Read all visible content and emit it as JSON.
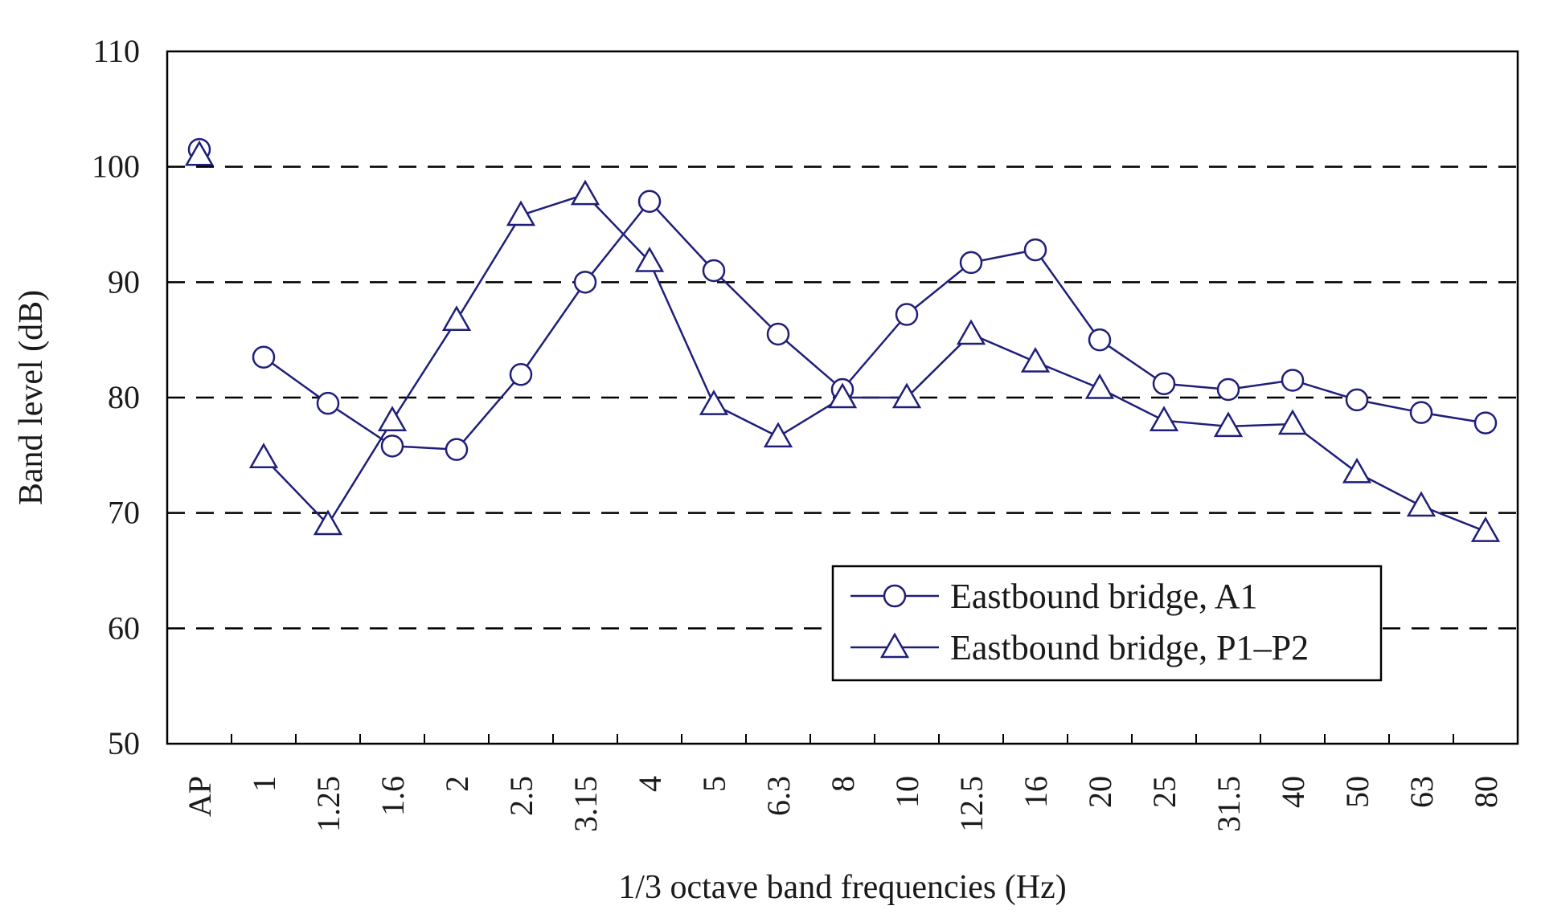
{
  "chart_data": {
    "type": "line",
    "xlabel": "1/3 octave band frequencies (Hz)",
    "ylabel": "Band level (dB)",
    "ylim": [
      50,
      110
    ],
    "yticks": [
      50,
      60,
      70,
      80,
      90,
      100,
      110
    ],
    "grid": "horizontal dashed at 60, 70, 80, 90, 100",
    "legend_position": "bottom-right",
    "line_color": "#1f1f7a",
    "categories": [
      "AP",
      "1",
      "1.25",
      "1.6",
      "2",
      "2.5",
      "3.15",
      "4",
      "5",
      "6.3",
      "8",
      "10",
      "12.5",
      "16",
      "20",
      "25",
      "31.5",
      "40",
      "50",
      "63",
      "80"
    ],
    "series": [
      {
        "name": "Eastbound bridge, A1",
        "marker": "circle",
        "values": [
          101.5,
          83.5,
          79.5,
          75.8,
          75.5,
          82.0,
          90.0,
          97.0,
          91.0,
          85.5,
          80.7,
          87.2,
          91.7,
          92.8,
          85.0,
          81.2,
          80.7,
          81.5,
          79.8,
          78.7,
          77.8
        ]
      },
      {
        "name": "Eastbound bridge, P1–P2",
        "marker": "triangle",
        "values": [
          101.0,
          74.8,
          69.0,
          78.0,
          86.7,
          95.8,
          97.6,
          91.8,
          79.4,
          76.6,
          80.0,
          80.0,
          85.5,
          83.1,
          80.8,
          78.0,
          77.5,
          77.7,
          73.5,
          70.6,
          68.4
        ]
      }
    ]
  }
}
